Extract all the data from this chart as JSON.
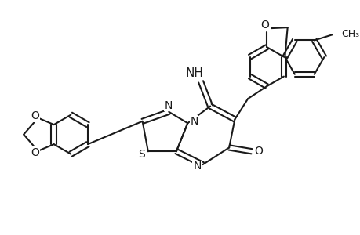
{
  "background_color": "#ffffff",
  "line_color": "#1a1a1a",
  "bond_width": 1.5,
  "font_size": 10,
  "fig_width": 4.6,
  "fig_height": 3.0,
  "dpi": 100,
  "xlim": [
    0,
    9.2
  ],
  "ylim": [
    0,
    6.0
  ]
}
